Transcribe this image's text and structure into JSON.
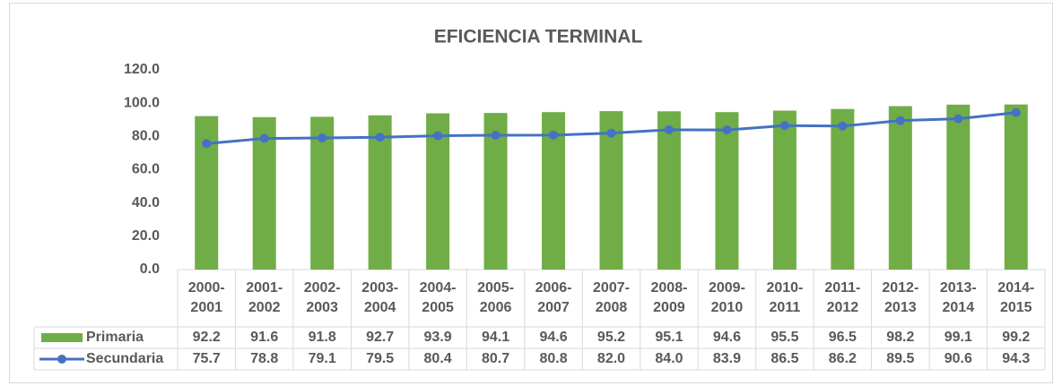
{
  "chart_data": {
    "type": "bar_line",
    "title": "EFICIENCIA TERMINAL",
    "categories": [
      [
        "2000-",
        "2001"
      ],
      [
        "2001-",
        "2002"
      ],
      [
        "2002-",
        "2003"
      ],
      [
        "2003-",
        "2004"
      ],
      [
        "2004-",
        "2005"
      ],
      [
        "2005-",
        "2006"
      ],
      [
        "2006-",
        "2007"
      ],
      [
        "2007-",
        "2008"
      ],
      [
        "2008-",
        "2009"
      ],
      [
        "2009-",
        "2010"
      ],
      [
        "2010-",
        "2011"
      ],
      [
        "2011-",
        "2012"
      ],
      [
        "2012-",
        "2013"
      ],
      [
        "2013-",
        "2014"
      ],
      [
        "2014-",
        "2015"
      ]
    ],
    "series": [
      {
        "name": "Primaria",
        "color": "#70ad47",
        "kind": "bar",
        "values": [
          92.2,
          91.6,
          91.8,
          92.7,
          93.9,
          94.1,
          94.6,
          95.2,
          95.1,
          94.6,
          95.5,
          96.5,
          98.2,
          99.1,
          99.2
        ],
        "value_labels": [
          "92.2",
          "91.6",
          "91.8",
          "92.7",
          "93.9",
          "94.1",
          "94.6",
          "95.2",
          "95.1",
          "94.6",
          "95.5",
          "96.5",
          "98.2",
          "99.1",
          "99.2"
        ]
      },
      {
        "name": "Secundaria",
        "color": "#4472c4",
        "kind": "line",
        "values": [
          75.7,
          78.8,
          79.1,
          79.5,
          80.4,
          80.7,
          80.8,
          82.0,
          84.0,
          83.9,
          86.5,
          86.2,
          89.5,
          90.6,
          94.3
        ],
        "value_labels": [
          "75.7",
          "78.8",
          "79.1",
          "79.5",
          "80.4",
          "80.7",
          "80.8",
          "82.0",
          "84.0",
          "83.9",
          "86.5",
          "86.2",
          "89.5",
          "90.6",
          "94.3"
        ]
      }
    ],
    "ylim": [
      0,
      120
    ],
    "yticks": [
      {
        "value": 0,
        "label": "0.0"
      },
      {
        "value": 20,
        "label": "20.0"
      },
      {
        "value": 40,
        "label": "40.0"
      },
      {
        "value": 60,
        "label": "60.0"
      },
      {
        "value": 80,
        "label": "80.0"
      },
      {
        "value": 100,
        "label": "100.0"
      },
      {
        "value": 120,
        "label": "120.0"
      }
    ],
    "grid": false,
    "data_table": true
  }
}
